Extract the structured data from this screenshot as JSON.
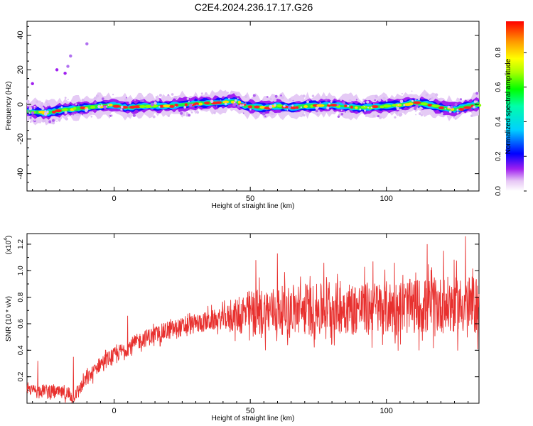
{
  "title": "C2E4.2024.236.17.17.G26",
  "chart_data": [
    {
      "type": "heatmap",
      "xlabel": "Height of straight line (km)",
      "ylabel": "Frequency (Hz)",
      "xlim": [
        -32,
        134
      ],
      "ylim": [
        -50,
        48
      ],
      "xticks": [
        0,
        50,
        100
      ],
      "yticks": [
        -40,
        -20,
        0,
        20,
        40
      ],
      "colorbar": {
        "label": "Normalized spectral amplitude",
        "range": [
          0,
          0.98
        ],
        "ticks": [
          "0.0",
          "0.2",
          "0.4",
          "0.6",
          "0.8"
        ]
      },
      "ridge": {
        "description_points_x": [
          -32,
          -25,
          -18,
          -10,
          -5,
          0,
          5,
          10,
          20,
          30,
          40,
          44,
          48,
          55,
          60,
          65,
          70,
          80,
          90,
          100,
          105,
          110,
          115,
          120,
          125,
          130,
          134
        ],
        "frequency_hz": [
          -4,
          -5,
          -3,
          -2,
          -1,
          -0.5,
          -2,
          -1,
          -1,
          0.5,
          1,
          2,
          -1,
          -2,
          -1,
          -2,
          -1,
          -0.5,
          -2,
          -1,
          -0.5,
          1,
          0,
          -2,
          -3,
          -1,
          0
        ]
      },
      "outliers": {
        "x": [
          -18,
          -17,
          -21,
          -16,
          -30,
          -10
        ],
        "frequency_hz": [
          18,
          22,
          20,
          28,
          12,
          35
        ]
      }
    },
    {
      "type": "line",
      "xlabel": "Height of straight line (km)",
      "ylabel": "SNR (10 * v/v)",
      "multiplier_label": "(x10",
      "multiplier_exp": "4",
      "multiplier_close": ")",
      "xlim": [
        -32,
        134
      ],
      "ylim": [
        0,
        1.28
      ],
      "xticks": [
        0,
        50,
        100
      ],
      "yticks": [
        "0.2",
        "0.4",
        "0.6",
        "0.8",
        "1.0",
        "1.2"
      ],
      "color": "#e8302e",
      "trend_x": [
        -32,
        -25,
        -20,
        -15,
        -10,
        -5,
        0,
        5,
        10,
        20,
        30,
        40,
        45,
        50,
        60,
        70,
        80,
        90,
        100,
        110,
        120,
        134
      ],
      "trend_y": [
        0.1,
        0.1,
        0.08,
        0.05,
        0.18,
        0.3,
        0.36,
        0.42,
        0.48,
        0.55,
        0.6,
        0.64,
        0.66,
        0.68,
        0.7,
        0.7,
        0.72,
        0.72,
        0.72,
        0.73,
        0.74,
        0.74
      ],
      "noise_x": [
        -32,
        -15,
        0,
        40,
        50,
        134
      ],
      "noise_amp": [
        0.04,
        0.05,
        0.06,
        0.08,
        0.18,
        0.22
      ],
      "peaks": {
        "x": [
          -28,
          -15,
          5,
          52,
          60,
          77,
          95,
          103,
          115,
          121,
          129
        ],
        "y": [
          0.32,
          0.35,
          0.66,
          1.08,
          1.13,
          1.06,
          1.07,
          1.06,
          1.2,
          1.15,
          1.26
        ]
      }
    }
  ]
}
